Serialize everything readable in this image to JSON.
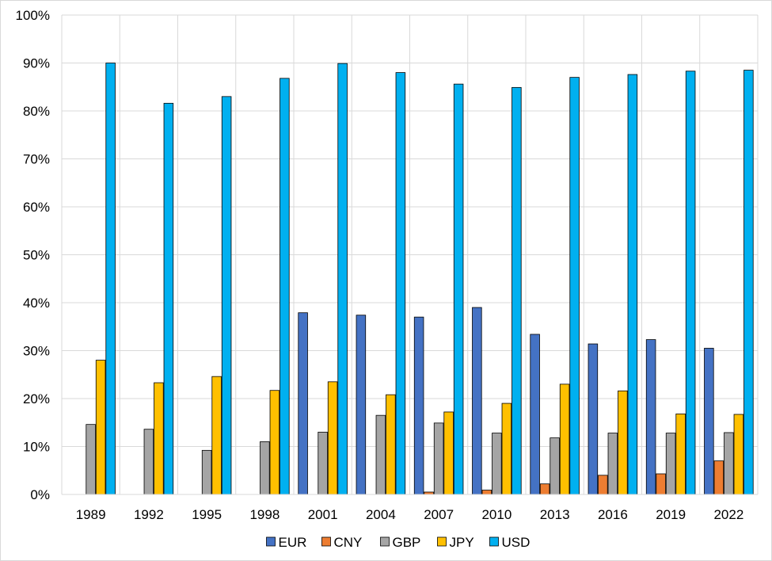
{
  "chart_data": {
    "type": "bar",
    "title": "",
    "xlabel": "",
    "ylabel": "",
    "ylim": [
      0,
      100
    ],
    "y_ticks": [
      "0%",
      "10%",
      "20%",
      "30%",
      "40%",
      "50%",
      "60%",
      "70%",
      "80%",
      "90%",
      "100%"
    ],
    "grid": "vertical lines between categories, horizontal lines at y ticks",
    "legend_position": "bottom-center",
    "categories": [
      "1989",
      "1992",
      "1995",
      "1998",
      "2001",
      "2004",
      "2007",
      "2010",
      "2013",
      "2016",
      "2019",
      "2022"
    ],
    "series": [
      {
        "name": "EUR",
        "color": "#4472c4",
        "values": [
          0,
          0,
          0,
          0,
          37.9,
          37.4,
          37.0,
          39.0,
          33.4,
          31.4,
          32.3,
          30.5
        ]
      },
      {
        "name": "CNY",
        "color": "#ed7d31",
        "values": [
          0,
          0,
          0,
          0,
          0,
          0,
          0.5,
          0.9,
          2.2,
          4.0,
          4.3,
          7.0
        ]
      },
      {
        "name": "GBP",
        "color": "#a5a5a5",
        "values": [
          14.6,
          13.6,
          9.2,
          11.0,
          13.0,
          16.5,
          14.9,
          12.8,
          11.8,
          12.8,
          12.8,
          12.9
        ]
      },
      {
        "name": "JPY",
        "color": "#ffc000",
        "values": [
          28.0,
          23.3,
          24.6,
          21.7,
          23.5,
          20.8,
          17.2,
          19.0,
          23.0,
          21.6,
          16.8,
          16.7
        ]
      },
      {
        "name": "USD",
        "color": "#00b0f0",
        "values": [
          90.0,
          81.6,
          83.0,
          86.8,
          89.9,
          88.0,
          85.6,
          84.9,
          87.0,
          87.6,
          88.3,
          88.5
        ]
      }
    ]
  }
}
